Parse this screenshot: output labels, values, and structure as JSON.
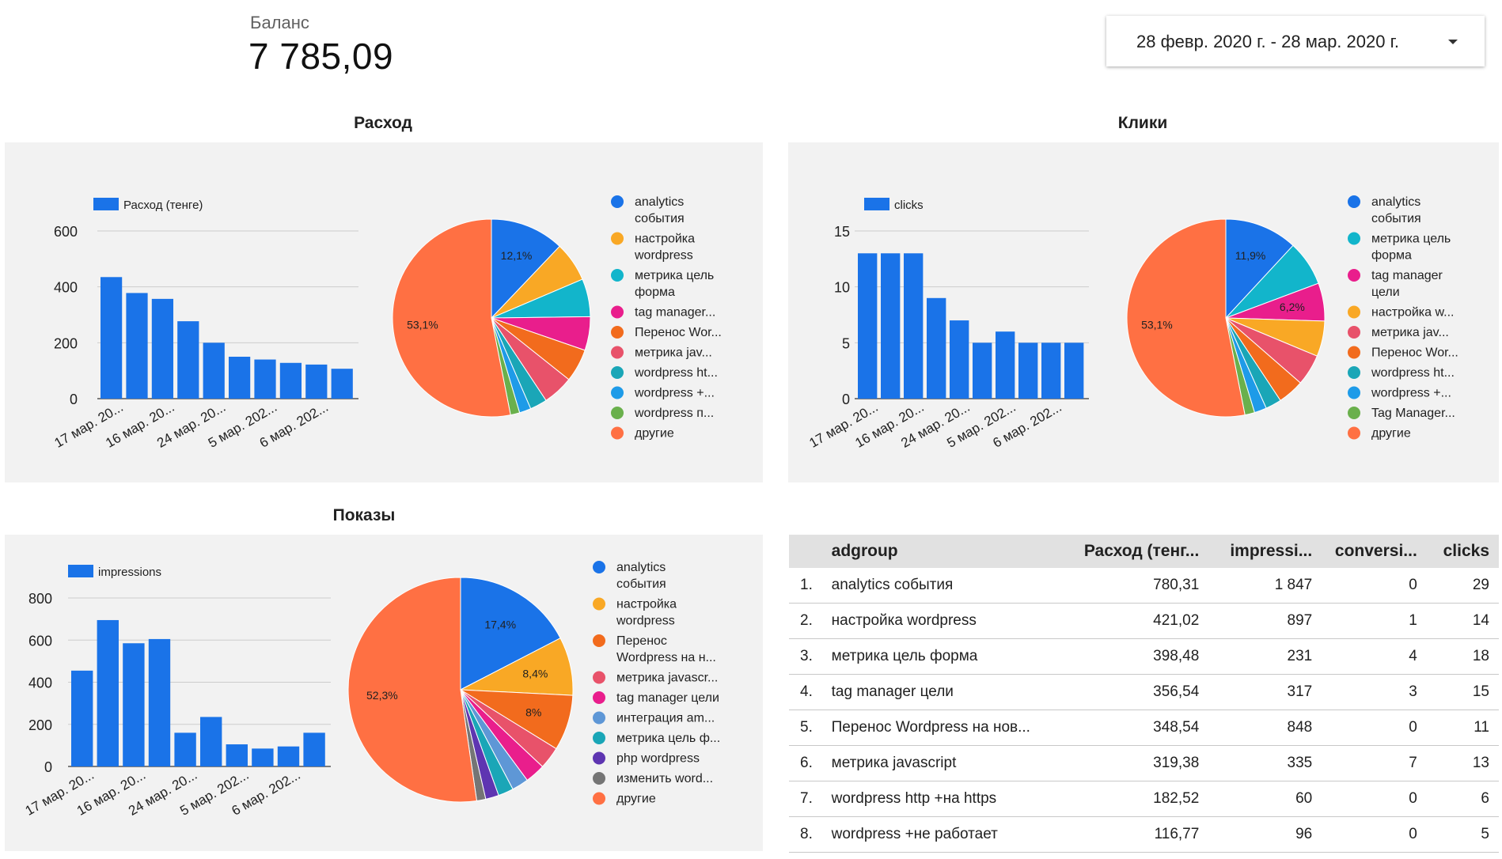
{
  "header": {
    "balance_label": "Баланс",
    "balance_value": "7 785,09",
    "date_range": "28 февр. 2020 г. - 28 мар. 2020 г."
  },
  "colors": {
    "bar": "#1a73e8",
    "panel_bg": "#f2f2f2",
    "grid": "#cccccc",
    "analytics": "#1a73e8",
    "orange": "#f9a825",
    "teal": "#12b5cb",
    "pink": "#e91e8c",
    "deep_orange": "#f26b1d",
    "red": "#e8526a",
    "cyan": "#1aa6b7",
    "light_blue": "#1e9be8",
    "green": "#6ab04c",
    "other": "#ff7043",
    "steel_blue": "#5e97d6",
    "purple": "#5e35b1",
    "grey": "#757575"
  },
  "chart_data": [
    {
      "id": "spend",
      "title": "Расход",
      "bar": {
        "type": "bar",
        "legend": "Расход (тенге)",
        "ylim": [
          0,
          600
        ],
        "yticks": [
          "0",
          "200",
          "400",
          "600"
        ],
        "values": [
          435,
          378,
          357,
          277,
          200,
          150,
          140,
          128,
          122,
          107
        ],
        "xtick_labels": [
          "17 мар. 20...",
          "16 мар. 20...",
          "24 мар. 20...",
          "5 мар. 202...",
          "6 мар. 202..."
        ]
      },
      "pie": {
        "type": "pie",
        "slices": [
          {
            "label": "analytics события",
            "value": 12.1,
            "color": "#1a73e8",
            "shown": "12,1%"
          },
          {
            "label": "настройка wordpress",
            "value": 6.5,
            "color": "#f9a825",
            "shown": ""
          },
          {
            "label": "метрика цель форма",
            "value": 6.2,
            "color": "#12b5cb",
            "shown": ""
          },
          {
            "label": "tag manager...",
            "value": 5.5,
            "color": "#e91e8c",
            "shown": ""
          },
          {
            "label": "Перенос Wor...",
            "value": 5.4,
            "color": "#f26b1d",
            "shown": ""
          },
          {
            "label": "метрика jav...",
            "value": 5.0,
            "color": "#e8526a",
            "shown": ""
          },
          {
            "label": "wordpress ht...",
            "value": 2.8,
            "color": "#1aa6b7",
            "shown": ""
          },
          {
            "label": "wordpress +...",
            "value": 1.9,
            "color": "#1e9be8",
            "shown": ""
          },
          {
            "label": "wordpress п...",
            "value": 1.5,
            "color": "#6ab04c",
            "shown": ""
          },
          {
            "label": "другие",
            "value": 53.1,
            "color": "#ff7043",
            "shown": "53,1%"
          }
        ],
        "legend": [
          [
            "analytics",
            "события"
          ],
          [
            "настройка",
            "wordpress"
          ],
          [
            "метрика цель",
            "форма"
          ],
          [
            "tag manager..."
          ],
          [
            "Перенос Wor..."
          ],
          [
            "метрика jav..."
          ],
          [
            "wordpress ht..."
          ],
          [
            "wordpress +..."
          ],
          [
            "wordpress п..."
          ],
          [
            "другие"
          ]
        ]
      }
    },
    {
      "id": "clicks",
      "title": "Клики",
      "bar": {
        "type": "bar",
        "legend": "clicks",
        "ylim": [
          0,
          15
        ],
        "yticks": [
          "0",
          "5",
          "10",
          "15"
        ],
        "values": [
          13,
          13,
          13,
          9,
          7,
          5,
          6,
          5,
          5,
          5
        ],
        "xtick_labels": [
          "17 мар. 20...",
          "16 мар. 20...",
          "24 мар. 20...",
          "5 мар. 202...",
          "6 мар. 202..."
        ]
      },
      "pie": {
        "type": "pie",
        "slices": [
          {
            "label": "analytics события",
            "value": 11.9,
            "color": "#1a73e8",
            "shown": "11,9%"
          },
          {
            "label": "метрика цель форма",
            "value": 7.4,
            "color": "#12b5cb",
            "shown": ""
          },
          {
            "label": "tag manager цели",
            "value": 6.2,
            "color": "#e91e8c",
            "shown": "6,2%"
          },
          {
            "label": "настройка w...",
            "value": 5.8,
            "color": "#f9a825",
            "shown": ""
          },
          {
            "label": "метрика jav...",
            "value": 5.1,
            "color": "#e8526a",
            "shown": ""
          },
          {
            "label": "Перенос Wor...",
            "value": 4.3,
            "color": "#f26b1d",
            "shown": ""
          },
          {
            "label": "wordpress ht...",
            "value": 2.6,
            "color": "#1aa6b7",
            "shown": ""
          },
          {
            "label": "wordpress +...",
            "value": 2.0,
            "color": "#1e9be8",
            "shown": ""
          },
          {
            "label": "Tag Manager...",
            "value": 1.6,
            "color": "#6ab04c",
            "shown": ""
          },
          {
            "label": "другие",
            "value": 53.1,
            "color": "#ff7043",
            "shown": "53,1%"
          }
        ],
        "legend": [
          [
            "analytics",
            "события"
          ],
          [
            "метрика цель",
            "форма"
          ],
          [
            "tag manager",
            "цели"
          ],
          [
            "настройка w..."
          ],
          [
            "метрика jav..."
          ],
          [
            "Перенос Wor..."
          ],
          [
            "wordpress ht..."
          ],
          [
            "wordpress +..."
          ],
          [
            "Tag Manager..."
          ],
          [
            "другие"
          ]
        ]
      }
    },
    {
      "id": "impressions",
      "title": "Показы",
      "bar": {
        "type": "bar",
        "legend": "impressions",
        "ylim": [
          0,
          800
        ],
        "yticks": [
          "0",
          "200",
          "400",
          "600",
          "800"
        ],
        "values": [
          455,
          695,
          585,
          605,
          160,
          235,
          105,
          85,
          95,
          160
        ],
        "xtick_labels": [
          "17 мар. 20...",
          "16 мар. 20...",
          "24 мар. 20...",
          "5 мар. 202...",
          "6 мар. 202..."
        ]
      },
      "pie": {
        "type": "pie",
        "slices": [
          {
            "label": "analytics события",
            "value": 17.4,
            "color": "#1a73e8",
            "shown": "17,4%"
          },
          {
            "label": "настройка wordpress",
            "value": 8.4,
            "color": "#f9a825",
            "shown": "8,4%"
          },
          {
            "label": "Перенос Wordpress на н...",
            "value": 8.0,
            "color": "#f26b1d",
            "shown": "8%"
          },
          {
            "label": "метрика javascr...",
            "value": 3.2,
            "color": "#e8526a",
            "shown": ""
          },
          {
            "label": "tag manager цели",
            "value": 2.9,
            "color": "#e91e8c",
            "shown": ""
          },
          {
            "label": "интеграция am...",
            "value": 2.4,
            "color": "#5e97d6",
            "shown": ""
          },
          {
            "label": "метрика цель ф...",
            "value": 2.2,
            "color": "#1aa6b7",
            "shown": ""
          },
          {
            "label": "php wordpress",
            "value": 1.9,
            "color": "#5e35b1",
            "shown": ""
          },
          {
            "label": "изменить word...",
            "value": 1.3,
            "color": "#757575",
            "shown": ""
          },
          {
            "label": "другие",
            "value": 52.3,
            "color": "#ff7043",
            "shown": "52,3%"
          }
        ],
        "legend": [
          [
            "analytics",
            "события"
          ],
          [
            "настройка",
            "wordpress"
          ],
          [
            "Перенос",
            "Wordpress на н..."
          ],
          [
            "метрика javascr..."
          ],
          [
            "tag manager цели"
          ],
          [
            "интеграция am..."
          ],
          [
            "метрика цель ф..."
          ],
          [
            "php wordpress"
          ],
          [
            "изменить word..."
          ],
          [
            "другие"
          ]
        ]
      }
    },
    {
      "id": "table",
      "type": "table",
      "columns": [
        "adgroup",
        "Расход (тенге)",
        "impressions",
        "conversions",
        "clicks"
      ],
      "rows": [
        [
          "1.",
          "analytics события",
          "780,31",
          "1 847",
          "0",
          "29"
        ],
        [
          "2.",
          "настройка wordpress",
          "421,02",
          "897",
          "1",
          "14"
        ],
        [
          "3.",
          "метрика цель форма",
          "398,48",
          "231",
          "4",
          "18"
        ],
        [
          "4.",
          "tag manager цели",
          "356,54",
          "317",
          "3",
          "15"
        ],
        [
          "5.",
          "Перенос Wordpress на нов...",
          "348,54",
          "848",
          "0",
          "11"
        ],
        [
          "6.",
          "метрика javascript",
          "319,38",
          "335",
          "7",
          "13"
        ],
        [
          "7.",
          "wordpress http +на https",
          "182,52",
          "60",
          "0",
          "6"
        ],
        [
          "8.",
          "wordpress +не работает",
          "116,77",
          "96",
          "0",
          "5"
        ]
      ]
    }
  ],
  "table_header": {
    "adgroup": "adgroup",
    "spend": "Расход (тенг...",
    "impressions": "impressi...",
    "conversions": "conversi...",
    "clicks": "clicks"
  }
}
